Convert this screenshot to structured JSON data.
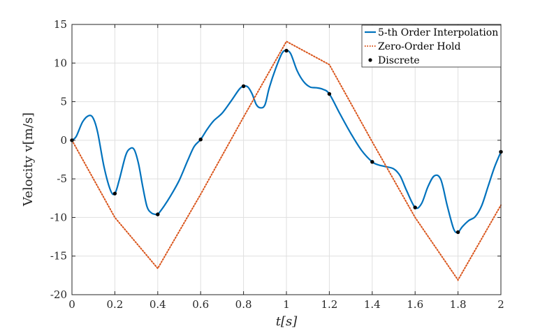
{
  "chart_data": {
    "type": "line",
    "xlabel": "t[s]",
    "ylabel": "Velocity v[m/s]",
    "xlim": [
      0,
      2
    ],
    "ylim": [
      -20,
      15
    ],
    "x_ticks": [
      0,
      0.2,
      0.4,
      0.6,
      0.8,
      1,
      1.2,
      1.4,
      1.6,
      1.8,
      2
    ],
    "x_tick_labels": [
      "0",
      "0.2",
      "0.4",
      "0.6",
      "0.8",
      "1",
      "1.2",
      "1.4",
      "1.6",
      "1.8",
      "2"
    ],
    "y_ticks": [
      -20,
      -15,
      -10,
      -5,
      0,
      5,
      10,
      15
    ],
    "y_tick_labels": [
      "-20",
      "-15",
      "-10",
      "-5",
      "0",
      "5",
      "10",
      "15"
    ],
    "grid": true,
    "legend_position": "top-right",
    "series": [
      {
        "name": "5-th Order Interpolation",
        "style": "solid",
        "color": "#0072BD",
        "x": [
          0,
          0.02,
          0.05,
          0.08,
          0.1,
          0.12,
          0.15,
          0.18,
          0.2,
          0.22,
          0.25,
          0.27,
          0.29,
          0.31,
          0.33,
          0.35,
          0.37,
          0.39,
          0.4,
          0.43,
          0.46,
          0.5,
          0.54,
          0.57,
          0.6,
          0.63,
          0.66,
          0.7,
          0.74,
          0.78,
          0.8,
          0.82,
          0.84,
          0.86,
          0.88,
          0.9,
          0.92,
          0.95,
          0.98,
          1.0,
          1.02,
          1.05,
          1.08,
          1.11,
          1.14,
          1.17,
          1.2,
          1.25,
          1.3,
          1.35,
          1.4,
          1.43,
          1.46,
          1.5,
          1.53,
          1.56,
          1.6,
          1.63,
          1.66,
          1.69,
          1.72,
          1.75,
          1.78,
          1.8,
          1.82,
          1.85,
          1.88,
          1.91,
          1.94,
          1.97,
          2.0
        ],
        "y": [
          0,
          0.5,
          2.4,
          3.2,
          2.8,
          1.0,
          -3.5,
          -6.5,
          -6.9,
          -5.2,
          -2.0,
          -1.1,
          -1.2,
          -3.0,
          -6.0,
          -8.6,
          -9.4,
          -9.6,
          -9.6,
          -8.5,
          -7.2,
          -5.2,
          -2.6,
          -0.8,
          0.1,
          1.4,
          2.5,
          3.5,
          5.0,
          6.6,
          7.0,
          6.9,
          6.0,
          4.6,
          4.2,
          4.6,
          6.8,
          9.3,
          11.3,
          11.6,
          11.2,
          9.0,
          7.6,
          6.9,
          6.8,
          6.6,
          6.0,
          3.4,
          0.9,
          -1.3,
          -2.8,
          -3.2,
          -3.4,
          -3.7,
          -4.6,
          -6.5,
          -8.7,
          -8.2,
          -6.0,
          -4.6,
          -5.1,
          -8.5,
          -11.5,
          -11.9,
          -11.2,
          -10.4,
          -9.9,
          -8.5,
          -6.0,
          -3.5,
          -1.5
        ]
      },
      {
        "name": "Zero-Order Hold",
        "style": "dotted",
        "color": "#D95319",
        "x": [
          0,
          0.2,
          0.4,
          0.6,
          0.8,
          1,
          1.2,
          1.4,
          1.6,
          1.8,
          2
        ],
        "y": [
          0,
          -10,
          -16.6,
          -7.0,
          3.0,
          12.8,
          9.8,
          -0.2,
          -10,
          -18.1,
          -8.4
        ]
      },
      {
        "name": "Discrete",
        "style": "markers",
        "color": "#000000",
        "x": [
          0,
          0.2,
          0.4,
          0.6,
          0.8,
          1,
          1.2,
          1.4,
          1.6,
          1.8,
          2
        ],
        "y": [
          0,
          -6.9,
          -9.6,
          0.1,
          7.0,
          11.6,
          6.0,
          -2.8,
          -8.7,
          -11.9,
          -1.5
        ]
      }
    ]
  }
}
